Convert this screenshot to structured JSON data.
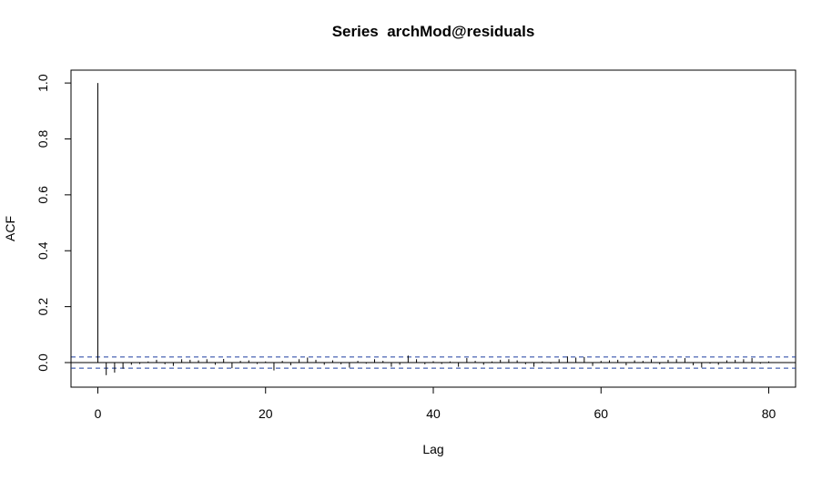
{
  "chart_data": {
    "type": "bar",
    "title": "Series  archMod@residuals",
    "xlabel": "Lag",
    "ylabel": "ACF",
    "xlim": [
      -3.2,
      83.2
    ],
    "ylim": [
      -0.088,
      1.046
    ],
    "x_ticks": [
      0,
      20,
      40,
      60,
      80
    ],
    "y_ticks": [
      0.0,
      0.2,
      0.4,
      0.6,
      0.8,
      1.0
    ],
    "x_tick_labels": [
      "0",
      "20",
      "40",
      "60",
      "80"
    ],
    "y_tick_labels": [
      "0.0",
      "0.2",
      "0.4",
      "0.6",
      "0.8",
      "1.0"
    ],
    "confidence_limit": 0.0198,
    "zero_line": 0,
    "grid": false,
    "lags": [
      0,
      1,
      2,
      3,
      4,
      5,
      6,
      7,
      8,
      9,
      10,
      11,
      12,
      13,
      14,
      15,
      16,
      17,
      18,
      19,
      20,
      21,
      22,
      23,
      24,
      25,
      26,
      27,
      28,
      29,
      30,
      31,
      32,
      33,
      34,
      35,
      36,
      37,
      38,
      39,
      40,
      41,
      42,
      43,
      44,
      45,
      46,
      47,
      48,
      49,
      50,
      51,
      52,
      53,
      54,
      55,
      56,
      57,
      58,
      59,
      60,
      61,
      62,
      63,
      64,
      65,
      66,
      67,
      68,
      69,
      70,
      71,
      72,
      73,
      74,
      75,
      76,
      77,
      78,
      79,
      80
    ],
    "acf": [
      1.0,
      -0.045,
      -0.036,
      -0.022,
      -0.008,
      -0.005,
      0.004,
      0.01,
      -0.006,
      -0.012,
      0.012,
      0.01,
      0.008,
      0.012,
      -0.008,
      0.013,
      -0.02,
      0.006,
      0.008,
      -0.005,
      0.004,
      -0.028,
      0.006,
      -0.01,
      0.012,
      0.018,
      0.01,
      -0.008,
      0.008,
      -0.006,
      -0.018,
      0.006,
      -0.004,
      0.012,
      0.006,
      -0.015,
      -0.008,
      0.025,
      0.012,
      -0.006,
      0.005,
      -0.005,
      0.004,
      -0.015,
      0.016,
      0.006,
      -0.008,
      0.004,
      0.01,
      0.012,
      0.008,
      -0.006,
      -0.015,
      0.004,
      -0.004,
      0.012,
      0.022,
      0.018,
      0.02,
      -0.012,
      0.006,
      0.008,
      0.01,
      -0.01,
      0.008,
      0.006,
      0.012,
      -0.006,
      0.01,
      0.012,
      0.016,
      -0.01,
      -0.018,
      -0.004,
      -0.008,
      0.008,
      0.01,
      0.012,
      0.016,
      -0.004,
      0.004
    ]
  }
}
